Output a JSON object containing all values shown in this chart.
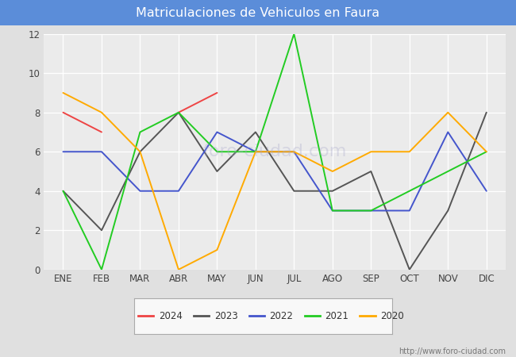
{
  "title": "Matriculaciones de Vehiculos en Faura",
  "title_bg_color": "#5B8DD9",
  "title_text_color": "#FFFFFF",
  "months": [
    "ENE",
    "FEB",
    "MAR",
    "ABR",
    "MAY",
    "JUN",
    "JUL",
    "AGO",
    "SEP",
    "OCT",
    "NOV",
    "DIC"
  ],
  "series": {
    "2024": {
      "color": "#EE4444",
      "data": [
        8,
        7,
        null,
        8,
        9,
        null,
        null,
        null,
        null,
        null,
        null,
        null
      ]
    },
    "2023": {
      "color": "#555555",
      "data": [
        4,
        2,
        6,
        8,
        5,
        7,
        4,
        4,
        5,
        0,
        3,
        8
      ]
    },
    "2022": {
      "color": "#4455CC",
      "data": [
        6,
        6,
        4,
        4,
        7,
        6,
        6,
        3,
        3,
        3,
        7,
        4
      ]
    },
    "2021": {
      "color": "#22CC22",
      "data": [
        4,
        0,
        7,
        8,
        6,
        6,
        12,
        3,
        3,
        4,
        5,
        6
      ]
    },
    "2020": {
      "color": "#FFAA00",
      "data": [
        9,
        8,
        6,
        0,
        1,
        6,
        6,
        5,
        6,
        6,
        8,
        6
      ]
    }
  },
  "ylim": [
    0,
    12
  ],
  "yticks": [
    0,
    2,
    4,
    6,
    8,
    10,
    12
  ],
  "outer_bg_color": "#E0E0E0",
  "plot_bg_color": "#EBEBEB",
  "grid_color": "#FFFFFF",
  "url_text": "http://www.foro-ciudad.com",
  "legend_order": [
    "2024",
    "2023",
    "2022",
    "2021",
    "2020"
  ]
}
